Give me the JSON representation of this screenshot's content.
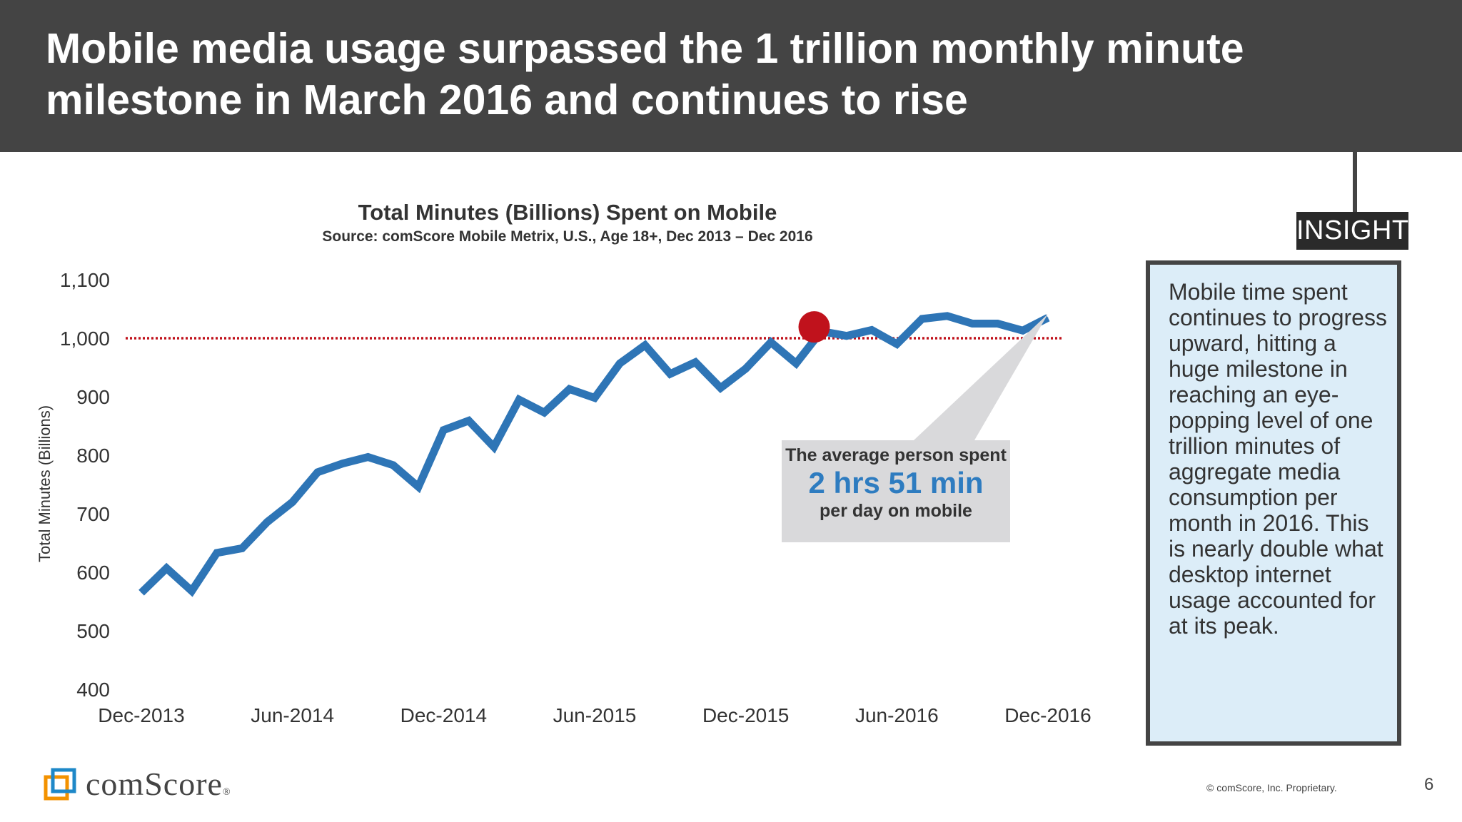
{
  "header": {
    "title": "Mobile media usage surpassed the 1 trillion monthly minute milestone in March 2016 and continues to rise"
  },
  "chart_data": {
    "type": "line",
    "title": "Total Minutes (Billions) Spent on Mobile",
    "subtitle": "Source: comScore Mobile Metrix, U.S., Age 18+, Dec 2013 – Dec 2016",
    "ylabel": "Total Minutes (Billions)",
    "xlabel": "",
    "ylim": [
      400,
      1100
    ],
    "yticks": [
      400,
      500,
      600,
      700,
      800,
      900,
      1000,
      1100
    ],
    "ytick_labels": [
      "400",
      "500",
      "600",
      "700",
      "800",
      "900",
      "1,000",
      "1,100"
    ],
    "x_tick_labels": [
      "Dec-2013",
      "Jun-2014",
      "Dec-2014",
      "Jun-2015",
      "Dec-2015",
      "Jun-2016",
      "Dec-2016"
    ],
    "x_tick_indices": [
      0,
      6,
      12,
      18,
      24,
      30,
      36
    ],
    "series": [
      {
        "color": "#2e75b6",
        "values": [
          565,
          607,
          568,
          633,
          641,
          686,
          720,
          771,
          786,
          797,
          783,
          746,
          843,
          859,
          814,
          895,
          873,
          913,
          898,
          957,
          988,
          939,
          959,
          915,
          948,
          993,
          957,
          1012,
          1004,
          1014,
          990,
          1033,
          1038,
          1025,
          1025,
          1013,
          1035
        ]
      }
    ],
    "reference_line": {
      "value": 1000,
      "color": "#c0121c",
      "style": "dotted"
    },
    "highlight_point": {
      "index": 27,
      "value": 1012,
      "color": "#c0121c"
    },
    "grid": false
  },
  "callout": {
    "line1": "The average person spent",
    "big": "2 hrs 51 min",
    "line3": "per day on mobile"
  },
  "insight": {
    "tab_label": "INSIGHT",
    "text": "Mobile time spent continues to progress upward, hitting a huge milestone in reaching an eye-popping level of one trillion minutes of aggregate media consumption per month in 2016. This is nearly double what desktop internet usage accounted for at its peak."
  },
  "footer": {
    "logo_text": "comScore",
    "logo_mark": "®",
    "copyright": "© comScore, Inc. Proprietary.",
    "page_number": "6"
  },
  "colors": {
    "header_bg": "#444444",
    "line": "#2e75b6",
    "accent_red": "#c0121c",
    "insight_bg": "#dcedf8",
    "callout_bg": "#d9d9db",
    "callout_highlight": "#2e7cc0"
  }
}
